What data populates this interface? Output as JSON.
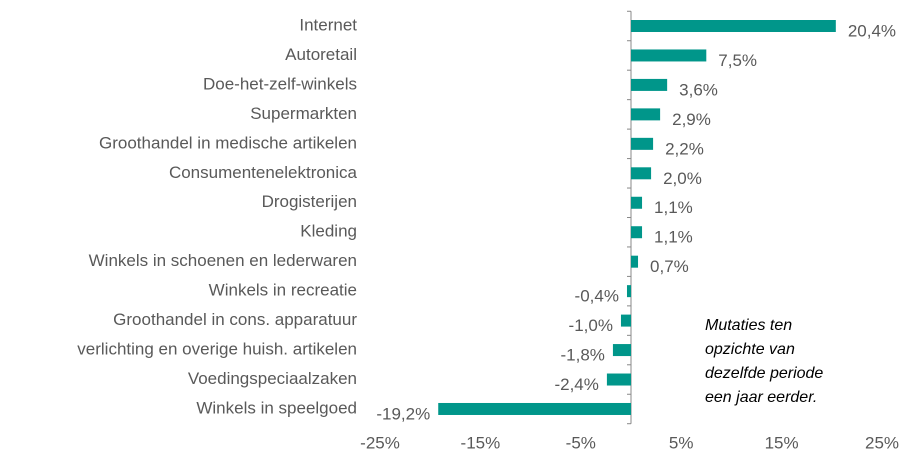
{
  "chart_data": {
    "type": "hbar",
    "categories": [
      "Internet",
      "Autoretail",
      "Doe-het-zelf-winkels",
      "Supermarkten",
      "Groothandel in medische artikelen",
      "Consumentenelektronica",
      "Drogisterijen",
      "Kleding",
      "Winkels in schoenen en lederwaren",
      "Winkels in recreatie",
      "Groothandel in cons. apparatuur",
      "verlichting en overige huish. artikelen",
      "Voedingspeciaalzaken",
      "Winkels in speelgoed"
    ],
    "values": [
      20.4,
      7.5,
      3.6,
      2.9,
      2.2,
      2.0,
      1.1,
      1.1,
      0.7,
      -0.4,
      -1.0,
      -1.8,
      -2.4,
      -19.2
    ],
    "value_labels": [
      "20,4%",
      "7,5%",
      "3,6%",
      "2,9%",
      "2,2%",
      "2,0%",
      "1,1%",
      "1,1%",
      "0,7%",
      "-0,4%",
      "-1,0%",
      "-1,8%",
      "-2,4%",
      "-19,2%"
    ],
    "color": "#00968a",
    "xlim": [
      -25,
      25
    ],
    "xticks": [
      {
        "value": -25,
        "label": "-25%"
      },
      {
        "value": -15,
        "label": "-15%"
      },
      {
        "value": -5,
        "label": "-5%"
      },
      {
        "value": 5,
        "label": "5%"
      },
      {
        "value": 15,
        "label": "15%"
      },
      {
        "value": 25,
        "label": "25%"
      }
    ],
    "annotation": [
      "Mutaties ten",
      "opzichte van",
      "dezelfde periode",
      "een jaar eerder."
    ]
  }
}
